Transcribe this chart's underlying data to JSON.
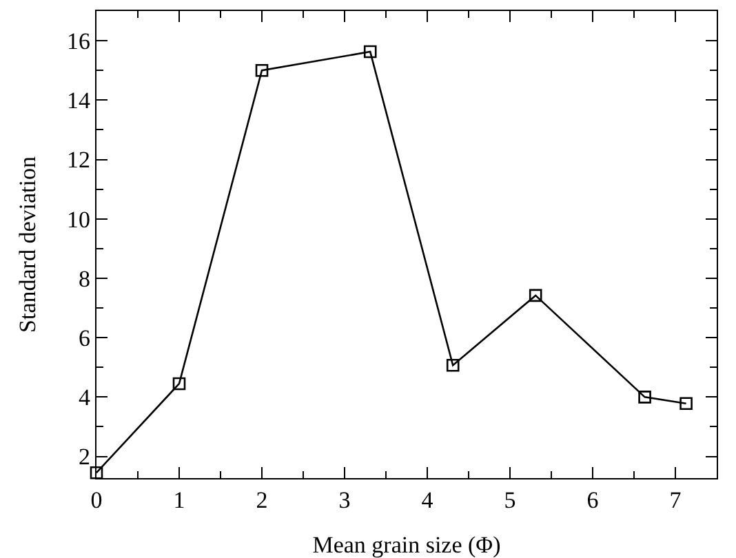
{
  "chart_data": {
    "type": "line",
    "xlabel": "Mean grain size (Φ)",
    "ylabel": "Standard deviation",
    "x": [
      0,
      1,
      2,
      3.31,
      4.31,
      5.31,
      6.63,
      7.13
    ],
    "series": [
      {
        "color": "#000000",
        "values": [
          1.45,
          4.45,
          15.0,
          15.63,
          5.07,
          7.42,
          4.0,
          3.78
        ]
      }
    ],
    "xlim": [
      0,
      7.5
    ],
    "xticks": [
      0,
      1,
      2,
      3,
      4,
      5,
      6,
      7
    ],
    "ylim": [
      1.27,
      17
    ],
    "yticks": [
      2,
      4,
      6,
      8,
      10,
      12,
      14,
      16
    ],
    "grid": false,
    "marker": "square",
    "line_style": "solid"
  }
}
